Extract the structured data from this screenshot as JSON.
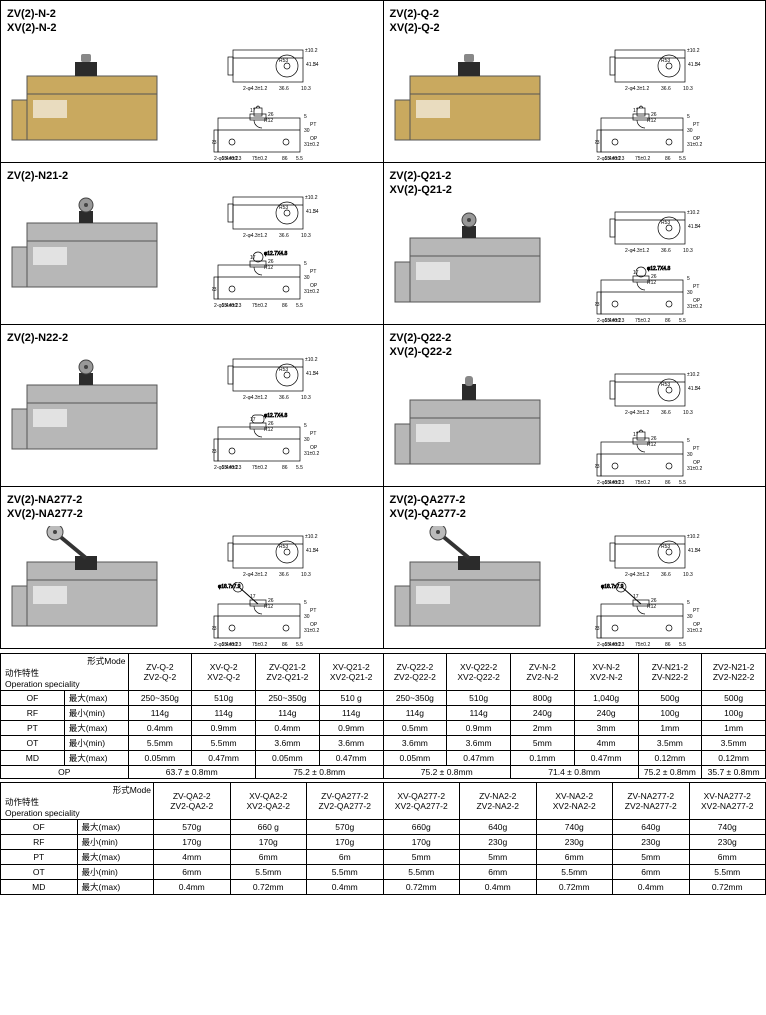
{
  "variants": [
    {
      "m1": "ZV(2)-N-2",
      "m2": "XV(2)-N-2",
      "color": "#c9a95f",
      "actuator": "plunger"
    },
    {
      "m1": "ZV(2)-Q-2",
      "m2": "XV(2)-Q-2",
      "color": "#c9a95f",
      "actuator": "plunger"
    },
    {
      "m1": "ZV(2)-N21-2",
      "m2": "",
      "color": "#b7b7b7",
      "actuator": "roller-cross"
    },
    {
      "m1": "ZV(2)-Q21-2",
      "m2": "XV(2)-Q21-2",
      "color": "#b7b7b7",
      "actuator": "roller-cross"
    },
    {
      "m1": "ZV(2)-N22-2",
      "m2": "",
      "color": "#b7b7b7",
      "actuator": "roller-par"
    },
    {
      "m1": "ZV(2)-Q22-2",
      "m2": "XV(2)-Q22-2",
      "color": "#b7b7b7",
      "actuator": "plunger-long"
    },
    {
      "m1": "ZV(2)-NA277-2",
      "m2": "XV(2)-NA277-2",
      "color": "#b7b7b7",
      "actuator": "lever"
    },
    {
      "m1": "ZV(2)-QA277-2",
      "m2": "XV(2)-QA277-2",
      "color": "#b7b7b7",
      "actuator": "lever"
    }
  ],
  "dims": {
    "r53": "R53",
    "h41": "41.3",
    "h54": "54",
    "pm10_2": "±10.2",
    "hole": "2-φ4.3±1.2",
    "w36_6": "36.6",
    "w10_3": "10.3",
    "r12": "R12",
    "w17": "17",
    "w26": "26",
    "h5": "5",
    "h30": "30",
    "op": "OP",
    "pt": "PT",
    "h31": "31±0.2",
    "h23": "23",
    "slot": "2-φ5.4±0.2",
    "w25_4": "25.4±0.3",
    "w75": "75±0.2",
    "w86": "86",
    "w5_5": "5.5",
    "roller": "φ12.7X4.8",
    "h40": "40",
    "lever_roller": "φ18.7x7.9",
    "lever_pivot": "6.1",
    "lever_h": "39.5±0.5",
    "lever_ofs": "11.9",
    "lever_w": "38.2±0.5"
  },
  "t1": {
    "mode_zh": "形式Mode",
    "op_spec_zh": "动作特性",
    "op_spec_en": "Operation speciality",
    "cols": [
      {
        "a": "ZV-Q-2",
        "b": "ZV2-Q-2"
      },
      {
        "a": "XV-Q-2",
        "b": "XV2-Q-2"
      },
      {
        "a": "ZV-Q21-2",
        "b": "ZV2-Q21-2"
      },
      {
        "a": "XV-Q21-2",
        "b": "XV2-Q21-2"
      },
      {
        "a": "ZV-Q22-2",
        "b": "ZV2-Q22-2"
      },
      {
        "a": "XV-Q22-2",
        "b": "XV2-Q22-2"
      },
      {
        "a": "ZV-N-2",
        "b": "ZV2-N-2"
      },
      {
        "a": "XV-N-2",
        "b": "XV2-N-2"
      },
      {
        "a": "ZV-N21-2",
        "b": "ZV-N22-2"
      },
      {
        "a": "ZV2-N21-2",
        "b": "ZV2-N22-2"
      }
    ],
    "rows": [
      {
        "k": "OF",
        "zh": "最大(max)",
        "v": [
          "250~350g",
          "510g",
          "250~350g",
          "510 g",
          "250~350g",
          "510g",
          "800g",
          "1,040g",
          "500g",
          "500g"
        ]
      },
      {
        "k": "RF",
        "zh": "最小(min)",
        "v": [
          "114g",
          "114g",
          "114g",
          "114g",
          "114g",
          "114g",
          "240g",
          "240g",
          "100g",
          "100g"
        ]
      },
      {
        "k": "PT",
        "zh": "最大(max)",
        "v": [
          "0.4mm",
          "0.9mm",
          "0.4mm",
          "0.9mm",
          "0.5mm",
          "0.9mm",
          "2mm",
          "3mm",
          "1mm",
          "1mm"
        ]
      },
      {
        "k": "OT",
        "zh": "最小(min)",
        "v": [
          "5.5mm",
          "5.5mm",
          "3.6mm",
          "3.6mm",
          "3.6mm",
          "3.6mm",
          "5mm",
          "4mm",
          "3.5mm",
          "3.5mm"
        ]
      },
      {
        "k": "MD",
        "zh": "最大(max)",
        "v": [
          "0.05mm",
          "0.47mm",
          "0.05mm",
          "0.47mm",
          "0.05mm",
          "0.47mm",
          "0.1mm",
          "0.47mm",
          "0.12mm",
          "0.12mm"
        ]
      }
    ],
    "op_row": {
      "k": "OP",
      "v": [
        "63.7 ± 0.8mm",
        "75.2 ± 0.8mm",
        "75.2 ± 0.8mm",
        "71.4 ± 0.8mm",
        "75.2 ± 0.8mm",
        "35.7 ± 0.8mm"
      ]
    }
  },
  "t2": {
    "cols": [
      {
        "a": "ZV-QA2-2",
        "b": "ZV2-QA2-2"
      },
      {
        "a": "XV-QA2-2",
        "b": "XV2-QA2-2"
      },
      {
        "a": "ZV-QA277-2",
        "b": "ZV2-QA277-2"
      },
      {
        "a": "XV-QA277-2",
        "b": "XV2-QA277-2"
      },
      {
        "a": "ZV-NA2-2",
        "b": "ZV2-NA2-2"
      },
      {
        "a": "XV-NA2-2",
        "b": "XV2-NA2-2"
      },
      {
        "a": "ZV-NA277-2",
        "b": "ZV2-NA277-2"
      },
      {
        "a": "XV-NA277-2",
        "b": "XV2-NA277-2"
      }
    ],
    "rows": [
      {
        "k": "OF",
        "zh": "最大(max)",
        "v": [
          "570g",
          "660 g",
          "570g",
          "660g",
          "640g",
          "740g",
          "640g",
          "740g"
        ]
      },
      {
        "k": "RF",
        "zh": "最小(min)",
        "v": [
          "170g",
          "170g",
          "170g",
          "170g",
          "230g",
          "230g",
          "230g",
          "230g"
        ]
      },
      {
        "k": "PT",
        "zh": "最大(max)",
        "v": [
          "4mm",
          "6mm",
          "6m",
          "5mm",
          "5mm",
          "6mm",
          "5mm",
          "6mm"
        ]
      },
      {
        "k": "OT",
        "zh": "最小(min)",
        "v": [
          "6mm",
          "5.5mm",
          "5.5mm",
          "5.5mm",
          "6mm",
          "5.5mm",
          "6mm",
          "5.5mm"
        ]
      },
      {
        "k": "MD",
        "zh": "最大(max)",
        "v": [
          "0.4mm",
          "0.72mm",
          "0.4mm",
          "0.72mm",
          "0.4mm",
          "0.72mm",
          "0.4mm",
          "0.72mm"
        ]
      }
    ]
  },
  "colors": {
    "switch_dark": "#2b2b2b",
    "switch_metal": "#888",
    "line": "#000",
    "bg": "#fff"
  }
}
